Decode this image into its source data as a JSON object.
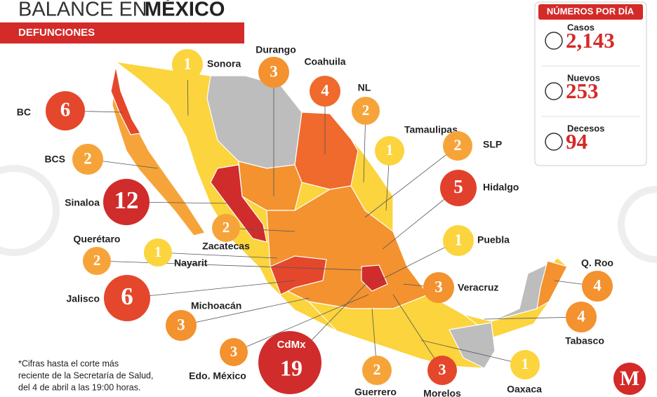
{
  "header": {
    "title_lead": "BALANCE EN",
    "title_strong": "MÉXICO",
    "subtitle": "DEFUNCIONES"
  },
  "states": [
    {
      "name": "Sonora",
      "value": 1,
      "color": "#fbd43e"
    },
    {
      "name": "Durango",
      "value": 3,
      "color": "#f3922e"
    },
    {
      "name": "Coahuila",
      "value": 4,
      "color": "#ef6a2c"
    },
    {
      "name": "NL",
      "value": 2,
      "color": "#f6a43a"
    },
    {
      "name": "Tamaulipas",
      "value": 1,
      "color": "#fbd43e"
    },
    {
      "name": "SLP",
      "value": 2,
      "color": "#f6a43a"
    },
    {
      "name": "Hidalgo",
      "value": 5,
      "color": "#e1412c"
    },
    {
      "name": "BC",
      "value": 6,
      "color": "#e4472c"
    },
    {
      "name": "BCS",
      "value": 2,
      "color": "#f6a43a"
    },
    {
      "name": "Sinaloa",
      "value": 12,
      "color": "#d02c2b"
    },
    {
      "name": "Zacatecas",
      "value": 2,
      "color": "#f6a43a"
    },
    {
      "name": "Querétaro",
      "value": 2,
      "color": "#f6a43a"
    },
    {
      "name": "Nayarit",
      "value": 1,
      "color": "#fbd43e"
    },
    {
      "name": "Puebla",
      "value": 1,
      "color": "#fbd43e"
    },
    {
      "name": "Jalisco",
      "value": 6,
      "color": "#e4472c"
    },
    {
      "name": "Michoacán",
      "value": 3,
      "color": "#f3922e"
    },
    {
      "name": "Veracruz",
      "value": 3,
      "color": "#f3922e"
    },
    {
      "name": "Q. Roo",
      "value": 4,
      "color": "#f3922e"
    },
    {
      "name": "Tabasco",
      "value": 4,
      "color": "#f3922e"
    },
    {
      "name": "Edo. México",
      "value": 3,
      "color": "#f3922e"
    },
    {
      "name": "CdMx",
      "value": 19,
      "color": "#d02c2b"
    },
    {
      "name": "Guerrero",
      "value": 2,
      "color": "#f6a43a"
    },
    {
      "name": "Morelos",
      "value": 3,
      "color": "#e4472c"
    },
    {
      "name": "Oaxaca",
      "value": 1,
      "color": "#fbd43e"
    }
  ],
  "stats": {
    "title": "NÚMEROS POR DÍA",
    "rows": [
      {
        "label": "Casos",
        "value": "2,143"
      },
      {
        "label": "Nuevos",
        "value": "253"
      },
      {
        "label": "Decesos",
        "value": "94"
      }
    ]
  },
  "footnote": [
    "*Cifras hasta el corte más",
    "reciente de la Secretaría de Salud,",
    "del 4 de abril a las 19:00 horas."
  ],
  "logo": "M"
}
